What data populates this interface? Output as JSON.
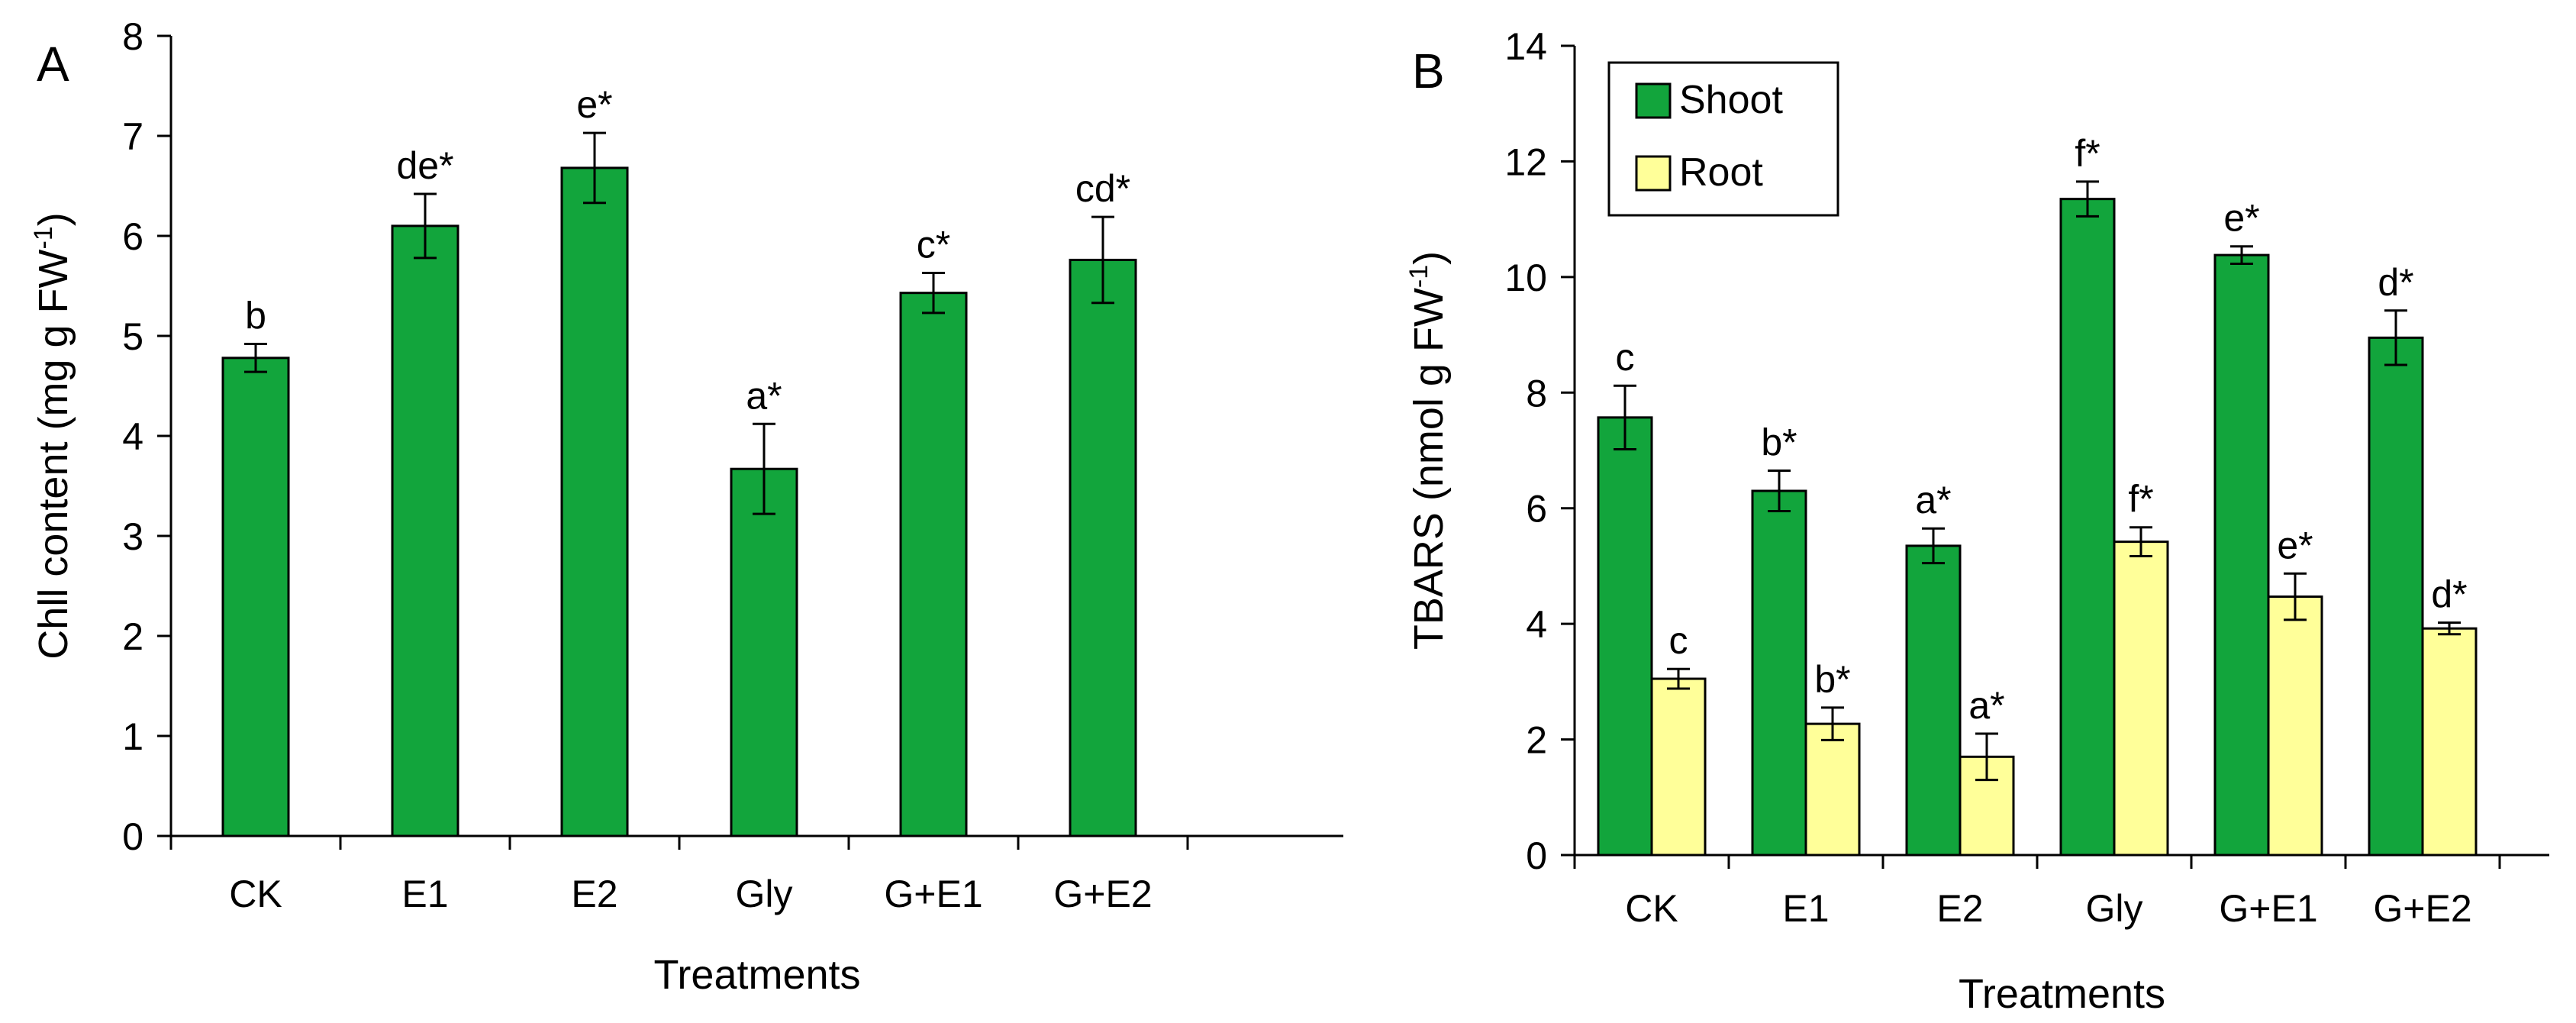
{
  "figure": {
    "colors": {
      "shoot": "#12a53c",
      "root": "#ffff99",
      "stroke": "#000000"
    }
  },
  "chart_data": [
    {
      "panel": "A",
      "type": "bar",
      "categories": [
        "CK",
        "E1",
        "E2",
        "Gly",
        "G+E1",
        "G+E2"
      ],
      "xlabel": "Treatments",
      "ylabel_main": "Chll content (mg g FW",
      "ylabel_sup": "-1",
      "ylabel_close": ")",
      "ylim": [
        0,
        8
      ],
      "yticks": [
        "0",
        "1",
        "2",
        "3",
        "4",
        "5",
        "6",
        "7",
        "8"
      ],
      "grid": false,
      "series": [
        {
          "name": "",
          "values": [
            4.78,
            6.1,
            6.68,
            3.67,
            5.43,
            5.76
          ],
          "errors": [
            0.14,
            0.32,
            0.35,
            0.45,
            0.2,
            0.43
          ],
          "labels": [
            "b",
            "de*",
            "e*",
            "a*",
            "c*",
            "cd*"
          ]
        }
      ]
    },
    {
      "panel": "B",
      "type": "bar",
      "categories": [
        "CK",
        "E1",
        "E2",
        "Gly",
        "G+E1",
        "G+E2"
      ],
      "xlabel": "Treatments",
      "ylabel_main": "TBARS (nmol g FW",
      "ylabel_sup": "-1",
      "ylabel_close": ")",
      "ylim": [
        0,
        14
      ],
      "yticks": [
        "0",
        "2",
        "4",
        "6",
        "8",
        "10",
        "12",
        "14"
      ],
      "grid": false,
      "legend_position": "top-left",
      "series": [
        {
          "name": "Shoot",
          "values": [
            7.57,
            6.3,
            5.35,
            11.35,
            10.38,
            8.95
          ],
          "errors": [
            0.55,
            0.35,
            0.3,
            0.3,
            0.15,
            0.47
          ],
          "labels": [
            "c",
            "b*",
            "a*",
            "f*",
            "e*",
            "d*"
          ]
        },
        {
          "name": "Root",
          "values": [
            3.05,
            2.27,
            1.7,
            5.42,
            4.47,
            3.92
          ],
          "errors": [
            0.17,
            0.28,
            0.4,
            0.25,
            0.4,
            0.1
          ],
          "labels": [
            "c",
            "b*",
            "a*",
            "f*",
            "e*",
            "d*"
          ]
        }
      ]
    }
  ]
}
